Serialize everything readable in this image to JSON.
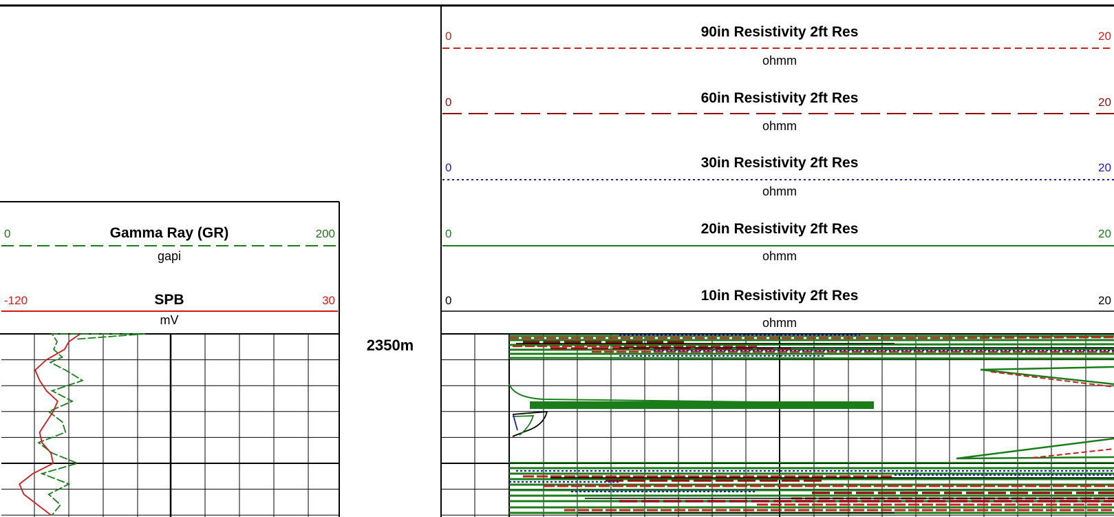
{
  "colors": {
    "gr": "#1a7d1a",
    "spb": "#d41616",
    "res90": "#c8201e",
    "res60": "#8e1010",
    "res30": "#1c1cbf",
    "res20": "#1a7d1a",
    "res10": "#000000",
    "frame": "#000000",
    "grid": "#000000"
  },
  "depth_label": "2350m",
  "chart_data": {
    "type": "line",
    "depth_marker": "2350m",
    "grid": true,
    "tracks": [
      {
        "name": "track-1",
        "curves": [
          {
            "key": "gr",
            "title": "Gamma Ray (GR)",
            "unit": "gapi",
            "left": "0",
            "right": "200",
            "min": 0,
            "max": 200,
            "line_style": "long-dash",
            "color": "#1a7d1a",
            "samples": [
              0.2,
              0.0,
              0.0,
              0.0,
              0.3,
              0.6,
              0.9,
              1.1,
              1.4,
              1.8,
              2.2,
              2.6,
              3.0,
              3.4,
              3.8,
              4.2,
              4.6,
              5.0,
              5.4,
              5.8,
              6.2,
              6.6,
              7.0
            ],
            "values": [
              45,
              85,
              60,
              30,
              33,
              31,
              36,
              29,
              38,
              48,
              30,
              42,
              28,
              36,
              38,
              22,
              30,
              45,
              24,
              40,
              28,
              35,
              30
            ]
          },
          {
            "key": "spb",
            "title": "SPB",
            "unit": "mV",
            "left": "-120",
            "right": "30",
            "min": -120,
            "max": 30,
            "line_style": "solid",
            "color": "#d41616",
            "samples": [
              0.0,
              0.3,
              0.6,
              1.0,
              1.4,
              1.8,
              2.2,
              2.6,
              3.0,
              3.4,
              3.8,
              4.2,
              4.6,
              5.0,
              5.4,
              5.8,
              6.2,
              6.6,
              7.0
            ],
            "values": [
              -85,
              -90,
              -92,
              -100,
              -105,
              -103,
              -100,
              -95,
              -97,
              -100,
              -103,
              -102,
              -98,
              -97,
              -106,
              -112,
              -110,
              -104,
              -98
            ]
          }
        ]
      },
      {
        "name": "track-2",
        "curves": [
          {
            "key": "res90",
            "title": "90in Resistivity 2ft Res",
            "unit": "ohmm",
            "left": "0",
            "right": "20",
            "min": 0,
            "max": 20,
            "line_style": "dash",
            "color": "#c8201e"
          },
          {
            "key": "res60",
            "title": "60in Resistivity 2ft Res",
            "unit": "ohmm",
            "left": "0",
            "right": "20",
            "min": 0,
            "max": 20,
            "line_style": "long-dash",
            "color": "#8e1010"
          },
          {
            "key": "res30",
            "title": "30in Resistivity 2ft Res",
            "unit": "ohmm",
            "left": "0",
            "right": "20",
            "min": 0,
            "max": 20,
            "line_style": "dot",
            "color": "#1c1cbf"
          },
          {
            "key": "res20",
            "title": "20in Resistivity 2ft Res",
            "unit": "ohmm",
            "left": "0",
            "right": "20",
            "min": 0,
            "max": 20,
            "line_style": "solid",
            "color": "#1a7d1a"
          },
          {
            "key": "res10",
            "title": "10in Resistivity 2ft Res",
            "unit": "ohmm",
            "left": "0",
            "right": "20",
            "min": 0,
            "max": 20,
            "line_style": "solid",
            "color": "#000000"
          }
        ]
      }
    ]
  }
}
